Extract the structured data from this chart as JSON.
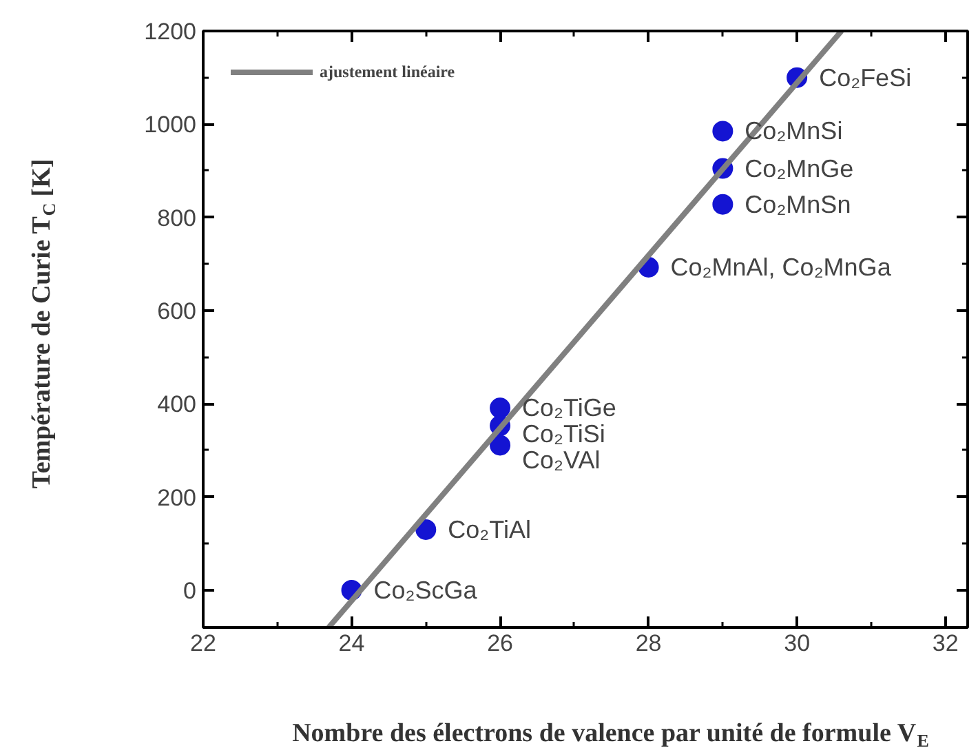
{
  "chart_data": {
    "type": "scatter",
    "xlabel": "Nombre des électrons de valence par unité de formule V$_{E}$",
    "ylabel": "Température de Curie T$_{C}$ [K]",
    "xlim": [
      22,
      32.3
    ],
    "xticks": [
      22,
      24,
      26,
      28,
      30,
      32
    ],
    "ylim": [
      -80,
      1200
    ],
    "yticks": [
      0,
      200,
      400,
      600,
      800,
      1000,
      1200
    ],
    "grid": false,
    "legend": "top left",
    "marker": "circle",
    "series": [
      {
        "color": "#1414d2",
        "x": [
          24,
          25,
          26,
          26,
          26,
          28,
          29,
          29,
          29,
          30
        ],
        "values": [
          0,
          130,
          391,
          353,
          311,
          693,
          828,
          905,
          985,
          1100
        ]
      },
      {
        "type": "line",
        "marker": "none",
        "name": "ajustement linéaire",
        "color": "#808080",
        "x": [
          23.69,
          30.6
        ],
        "values": [
          -80,
          1200
        ]
      }
    ],
    "annotations": [
      {
        "text": "Co₂FeSi",
        "x": 30,
        "y": 1100
      },
      {
        "text": "Co₂MnSi",
        "x": 29,
        "y": 985
      },
      {
        "text": "Co₂MnGe",
        "x": 29,
        "y": 905
      },
      {
        "text": "Co₂MnSn",
        "x": 29,
        "y": 828
      },
      {
        "text": "Co₂MnAl, Co₂MnGa",
        "x": 28,
        "y": 693
      },
      {
        "text": "Co₂TiGe",
        "x": 26,
        "y": 391
      },
      {
        "text": "Co₂TiSi",
        "x": 26,
        "y": 353
      },
      {
        "text": "Co₂VAl",
        "x": 26,
        "y": 311
      },
      {
        "text": "Co₂TiAl",
        "x": 25,
        "y": 130
      },
      {
        "text": "Co₂ScGa",
        "x": 24,
        "y": 0
      }
    ]
  }
}
